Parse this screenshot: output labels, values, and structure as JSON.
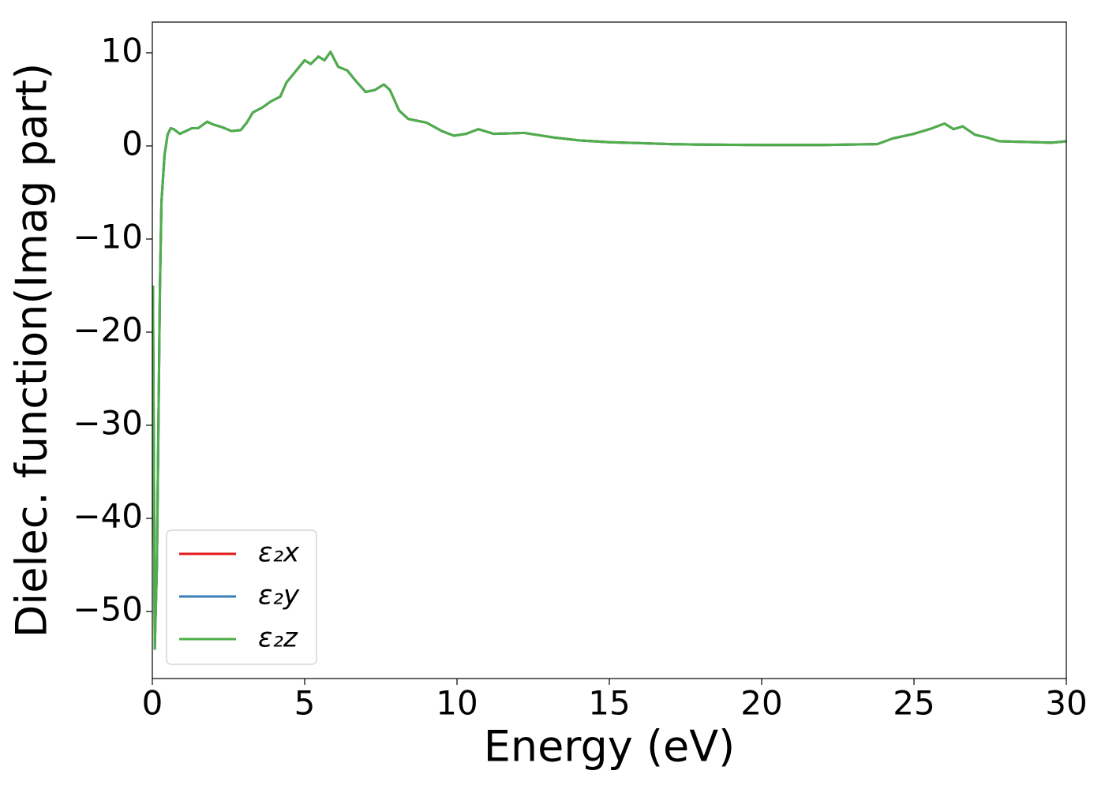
{
  "chart_data": {
    "type": "line",
    "xlabel": "Energy (eV)",
    "ylabel": "Dielec. function(Imag part)",
    "x": [
      0.02,
      0.08,
      0.15,
      0.2,
      0.25,
      0.3,
      0.4,
      0.5,
      0.6,
      0.7,
      0.9,
      1.1,
      1.3,
      1.5,
      1.8,
      2.0,
      2.3,
      2.6,
      2.9,
      3.1,
      3.3,
      3.6,
      3.9,
      4.2,
      4.4,
      4.7,
      5.0,
      5.2,
      5.45,
      5.65,
      5.85,
      6.1,
      6.4,
      6.7,
      7.0,
      7.3,
      7.6,
      7.8,
      8.1,
      8.4,
      9.0,
      9.5,
      9.9,
      10.3,
      10.7,
      11.2,
      12.2,
      13.2,
      14.0,
      15,
      16,
      17,
      18,
      20,
      22,
      23.8,
      24.3,
      25.0,
      25.6,
      26.0,
      26.3,
      26.6,
      27.0,
      27.4,
      27.8,
      29,
      29.5,
      30
    ],
    "series": [
      {
        "name": "ε₂x",
        "color": "#e41a1c",
        "values": [
          -15,
          -54,
          -45,
          -30,
          -15,
          -6,
          -1,
          1.2,
          1.9,
          1.8,
          1.3,
          1.6,
          1.9,
          1.9,
          2.6,
          2.3,
          2.0,
          1.6,
          1.7,
          2.5,
          3.6,
          4.1,
          4.8,
          5.3,
          6.8,
          8.0,
          9.2,
          8.8,
          9.6,
          9.2,
          10.1,
          8.5,
          8.1,
          6.9,
          5.8,
          6.0,
          6.6,
          6.0,
          3.8,
          2.9,
          2.5,
          1.6,
          1.1,
          1.3,
          1.8,
          1.3,
          1.4,
          0.9,
          0.6,
          0.4,
          0.3,
          0.2,
          0.15,
          0.1,
          0.1,
          0.2,
          0.8,
          1.3,
          1.9,
          2.4,
          1.8,
          2.1,
          1.2,
          0.9,
          0.5,
          0.4,
          0.35,
          0.5
        ]
      },
      {
        "name": "ε₂y",
        "color": "#377eb8",
        "values": [
          -15,
          -54,
          -45,
          -30,
          -15,
          -6,
          -1,
          1.2,
          1.9,
          1.8,
          1.3,
          1.6,
          1.9,
          1.9,
          2.6,
          2.3,
          2.0,
          1.6,
          1.7,
          2.5,
          3.6,
          4.1,
          4.8,
          5.3,
          6.8,
          8.0,
          9.2,
          8.8,
          9.6,
          9.2,
          10.1,
          8.5,
          8.1,
          6.9,
          5.8,
          6.0,
          6.6,
          6.0,
          3.8,
          2.9,
          2.5,
          1.6,
          1.1,
          1.3,
          1.8,
          1.3,
          1.4,
          0.9,
          0.6,
          0.4,
          0.3,
          0.2,
          0.15,
          0.1,
          0.1,
          0.2,
          0.8,
          1.3,
          1.9,
          2.4,
          1.8,
          2.1,
          1.2,
          0.9,
          0.5,
          0.4,
          0.35,
          0.5
        ]
      },
      {
        "name": "ε₂z",
        "color": "#4daf4a",
        "values": [
          -15,
          -54,
          -45,
          -30,
          -15,
          -6,
          -1,
          1.2,
          1.9,
          1.8,
          1.3,
          1.6,
          1.9,
          1.9,
          2.6,
          2.3,
          2.0,
          1.6,
          1.7,
          2.5,
          3.6,
          4.1,
          4.8,
          5.3,
          6.8,
          8.0,
          9.2,
          8.8,
          9.6,
          9.2,
          10.1,
          8.5,
          8.1,
          6.9,
          5.8,
          6.0,
          6.6,
          6.0,
          3.8,
          2.9,
          2.5,
          1.6,
          1.1,
          1.3,
          1.8,
          1.3,
          1.4,
          0.9,
          0.6,
          0.4,
          0.3,
          0.2,
          0.15,
          0.1,
          0.1,
          0.2,
          0.8,
          1.3,
          1.9,
          2.4,
          1.8,
          2.1,
          1.2,
          0.9,
          0.5,
          0.4,
          0.35,
          0.5
        ]
      }
    ],
    "xlim": [
      0,
      30
    ],
    "ylim": [
      -57.2,
      13.3
    ],
    "xticks": [
      0,
      5,
      10,
      15,
      20,
      25,
      30
    ],
    "yticks": [
      {
        "value": -50,
        "label": "−50"
      },
      {
        "value": -40,
        "label": "−40"
      },
      {
        "value": -30,
        "label": "−30"
      },
      {
        "value": -20,
        "label": "−20"
      },
      {
        "value": -10,
        "label": "−10"
      },
      0,
      10
    ],
    "legend": "lower left",
    "grid": false
  }
}
